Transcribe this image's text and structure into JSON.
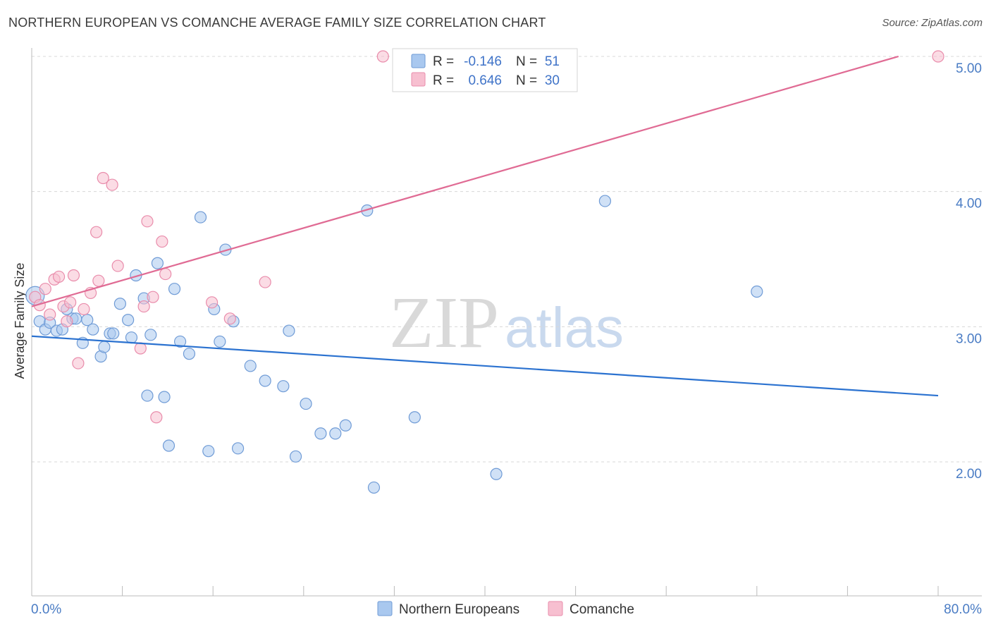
{
  "title": "NORTHERN EUROPEAN VS COMANCHE AVERAGE FAMILY SIZE CORRELATION CHART",
  "source": "Source: ZipAtlas.com",
  "watermark": {
    "zip": "ZIP",
    "atlas": "atlas"
  },
  "legend": {
    "r_label": "R =",
    "n_label": "N =",
    "rows": [
      {
        "r": "-0.146",
        "n": "51",
        "color": "#a9c8ef",
        "stroke": "#6f9bd6"
      },
      {
        "r": "0.646",
        "n": "30",
        "color": "#f7bfd0",
        "stroke": "#e98cab"
      }
    ]
  },
  "colors": {
    "blue_fill": "#a9c8ef",
    "blue_stroke": "#6f9bd6",
    "blue_line": "#2b72d0",
    "pink_fill": "#f7bfd0",
    "pink_stroke": "#e98cab",
    "pink_line": "#e06b94",
    "grid": "#d8d8d8",
    "tick_label": "#4a7cc4"
  },
  "chart_data": {
    "type": "scatter",
    "title": "NORTHERN EUROPEAN VS COMANCHE AVERAGE FAMILY SIZE CORRELATION CHART",
    "xlabel": "",
    "ylabel": "Average Family Size",
    "xlim": [
      0,
      80
    ],
    "ylim": [
      1.0,
      5.1
    ],
    "x_tick_labels": [
      "0.0%",
      "80.0%"
    ],
    "y_ticks": [
      2.0,
      3.0,
      4.0,
      5.0
    ],
    "y_tick_labels": [
      "2.00",
      "3.00",
      "4.00",
      "5.00"
    ],
    "grid": "horizontal dashed",
    "legend_position": "top-center",
    "series": [
      {
        "name": "Northern Europeans",
        "r": -0.146,
        "n": 51,
        "trend": {
          "x": [
            0,
            80
          ],
          "y": [
            2.93,
            2.49
          ]
        },
        "points": [
          [
            0.3,
            3.23
          ],
          [
            0.7,
            3.04
          ],
          [
            1.2,
            2.98
          ],
          [
            1.6,
            3.03
          ],
          [
            2.2,
            2.97
          ],
          [
            2.7,
            2.98
          ],
          [
            3.1,
            3.13
          ],
          [
            3.6,
            3.06
          ],
          [
            3.9,
            3.06
          ],
          [
            4.5,
            2.88
          ],
          [
            4.9,
            3.05
          ],
          [
            5.4,
            2.98
          ],
          [
            6.1,
            2.78
          ],
          [
            6.4,
            2.85
          ],
          [
            6.9,
            2.95
          ],
          [
            7.2,
            2.95
          ],
          [
            7.8,
            3.17
          ],
          [
            8.5,
            3.05
          ],
          [
            8.8,
            2.92
          ],
          [
            9.2,
            3.38
          ],
          [
            9.9,
            3.21
          ],
          [
            10.2,
            2.49
          ],
          [
            10.5,
            2.94
          ],
          [
            11.1,
            3.47
          ],
          [
            11.7,
            2.48
          ],
          [
            12.1,
            2.12
          ],
          [
            12.6,
            3.28
          ],
          [
            13.1,
            2.89
          ],
          [
            13.9,
            2.8
          ],
          [
            14.9,
            3.81
          ],
          [
            15.6,
            2.08
          ],
          [
            16.1,
            3.13
          ],
          [
            16.6,
            2.89
          ],
          [
            17.1,
            3.57
          ],
          [
            17.8,
            3.04
          ],
          [
            18.2,
            2.1
          ],
          [
            19.3,
            2.71
          ],
          [
            20.6,
            2.6
          ],
          [
            22.2,
            2.56
          ],
          [
            22.7,
            2.97
          ],
          [
            23.3,
            2.04
          ],
          [
            24.2,
            2.43
          ],
          [
            25.5,
            2.21
          ],
          [
            26.8,
            2.21
          ],
          [
            27.7,
            2.27
          ],
          [
            29.6,
            3.86
          ],
          [
            30.2,
            1.81
          ],
          [
            33.8,
            2.33
          ],
          [
            41.0,
            1.91
          ],
          [
            50.6,
            3.93
          ],
          [
            64.0,
            3.26
          ]
        ]
      },
      {
        "name": "Comanche",
        "r": 0.646,
        "n": 30,
        "trend": {
          "x": [
            0,
            76.5
          ],
          "y": [
            3.15,
            5.0
          ]
        },
        "points": [
          [
            0.3,
            3.22
          ],
          [
            0.7,
            3.16
          ],
          [
            1.2,
            3.28
          ],
          [
            1.6,
            3.09
          ],
          [
            2.0,
            3.35
          ],
          [
            2.4,
            3.37
          ],
          [
            2.8,
            3.15
          ],
          [
            3.1,
            3.04
          ],
          [
            3.4,
            3.18
          ],
          [
            3.7,
            3.38
          ],
          [
            4.1,
            2.73
          ],
          [
            4.6,
            3.13
          ],
          [
            5.2,
            3.25
          ],
          [
            5.7,
            3.7
          ],
          [
            5.9,
            3.34
          ],
          [
            6.3,
            4.1
          ],
          [
            7.1,
            4.05
          ],
          [
            7.6,
            3.45
          ],
          [
            9.6,
            2.84
          ],
          [
            9.9,
            3.15
          ],
          [
            10.2,
            3.78
          ],
          [
            10.7,
            3.22
          ],
          [
            11.0,
            2.33
          ],
          [
            11.5,
            3.63
          ],
          [
            11.8,
            3.39
          ],
          [
            15.9,
            3.18
          ],
          [
            17.5,
            3.06
          ],
          [
            20.6,
            3.33
          ],
          [
            31.0,
            5.0
          ],
          [
            80.0,
            5.0
          ]
        ]
      }
    ]
  },
  "bottom_legend": [
    {
      "label": "Northern Europeans",
      "color": "#a9c8ef",
      "stroke": "#6f9bd6"
    },
    {
      "label": "Comanche",
      "color": "#f7bfd0",
      "stroke": "#e98cab"
    }
  ]
}
